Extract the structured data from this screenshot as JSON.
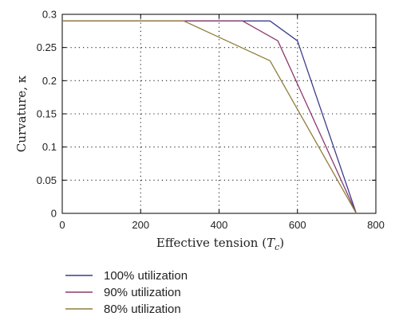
{
  "chart_data": {
    "type": "line",
    "title": "",
    "xlabel": "Effective tension (T_c)",
    "xlabel_main": "Effective tension (",
    "xlabel_var": "T",
    "xlabel_sub": "c",
    "xlabel_close": ")",
    "ylabel": "Curvature, κ",
    "xlim": [
      0,
      800
    ],
    "ylim": [
      0,
      0.3
    ],
    "xticks": [
      0,
      200,
      400,
      600,
      800
    ],
    "yticks": [
      0,
      0.05,
      0.1,
      0.15,
      0.2,
      0.25,
      0.3
    ],
    "xtick_labels": [
      "0",
      "200",
      "400",
      "600",
      "800"
    ],
    "ytick_labels": [
      "0",
      "0.05",
      "0.1",
      "0.15",
      "0.2",
      "0.25",
      "0.3"
    ],
    "grid": true,
    "legend_position": "below",
    "series": [
      {
        "name": "100% utilization",
        "color": "#3c3c8c",
        "points": [
          [
            0,
            0.29
          ],
          [
            530,
            0.29
          ],
          [
            600,
            0.26
          ],
          [
            750,
            0
          ]
        ]
      },
      {
        "name": "90% utilization",
        "color": "#8c3a6e",
        "points": [
          [
            0,
            0.29
          ],
          [
            460,
            0.29
          ],
          [
            550,
            0.26
          ],
          [
            750,
            0
          ]
        ]
      },
      {
        "name": "80% utilization",
        "color": "#8e7d3a",
        "points": [
          [
            0,
            0.29
          ],
          [
            310,
            0.29
          ],
          [
            530,
            0.23
          ],
          [
            750,
            0
          ]
        ]
      }
    ]
  }
}
